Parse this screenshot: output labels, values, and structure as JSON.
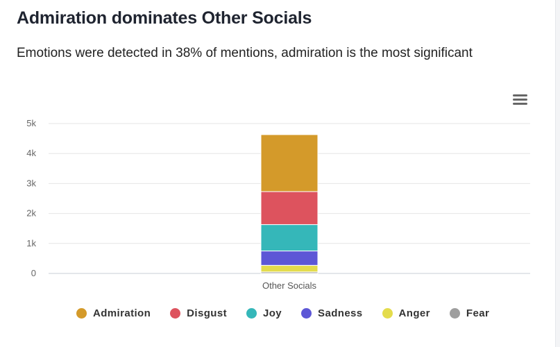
{
  "title": "Admiration dominates Other Socials",
  "subtitle": "Emotions were detected in 38% of mentions, admiration is the most significant",
  "menu_icon": "hamburger-menu-icon",
  "chart_data": {
    "type": "bar",
    "stacked": true,
    "categories": [
      "Other Socials"
    ],
    "series": [
      {
        "name": "Fear",
        "values": [
          50
        ],
        "color": "#9e9e9e"
      },
      {
        "name": "Anger",
        "values": [
          220
        ],
        "color": "#e4dc4c"
      },
      {
        "name": "Sadness",
        "values": [
          480
        ],
        "color": "#5d57d6"
      },
      {
        "name": "Joy",
        "values": [
          880
        ],
        "color": "#35b7b9"
      },
      {
        "name": "Disgust",
        "values": [
          1100
        ],
        "color": "#dd535e"
      },
      {
        "name": "Admiration",
        "values": [
          1900
        ],
        "color": "#d49a2a"
      }
    ],
    "legend_order": [
      "Admiration",
      "Disgust",
      "Joy",
      "Sadness",
      "Anger",
      "Fear"
    ],
    "ylim": [
      0,
      5000
    ],
    "yticks": [
      "0",
      "1k",
      "2k",
      "3k",
      "4k",
      "5k"
    ],
    "grid": true,
    "legend_position": "bottom"
  }
}
